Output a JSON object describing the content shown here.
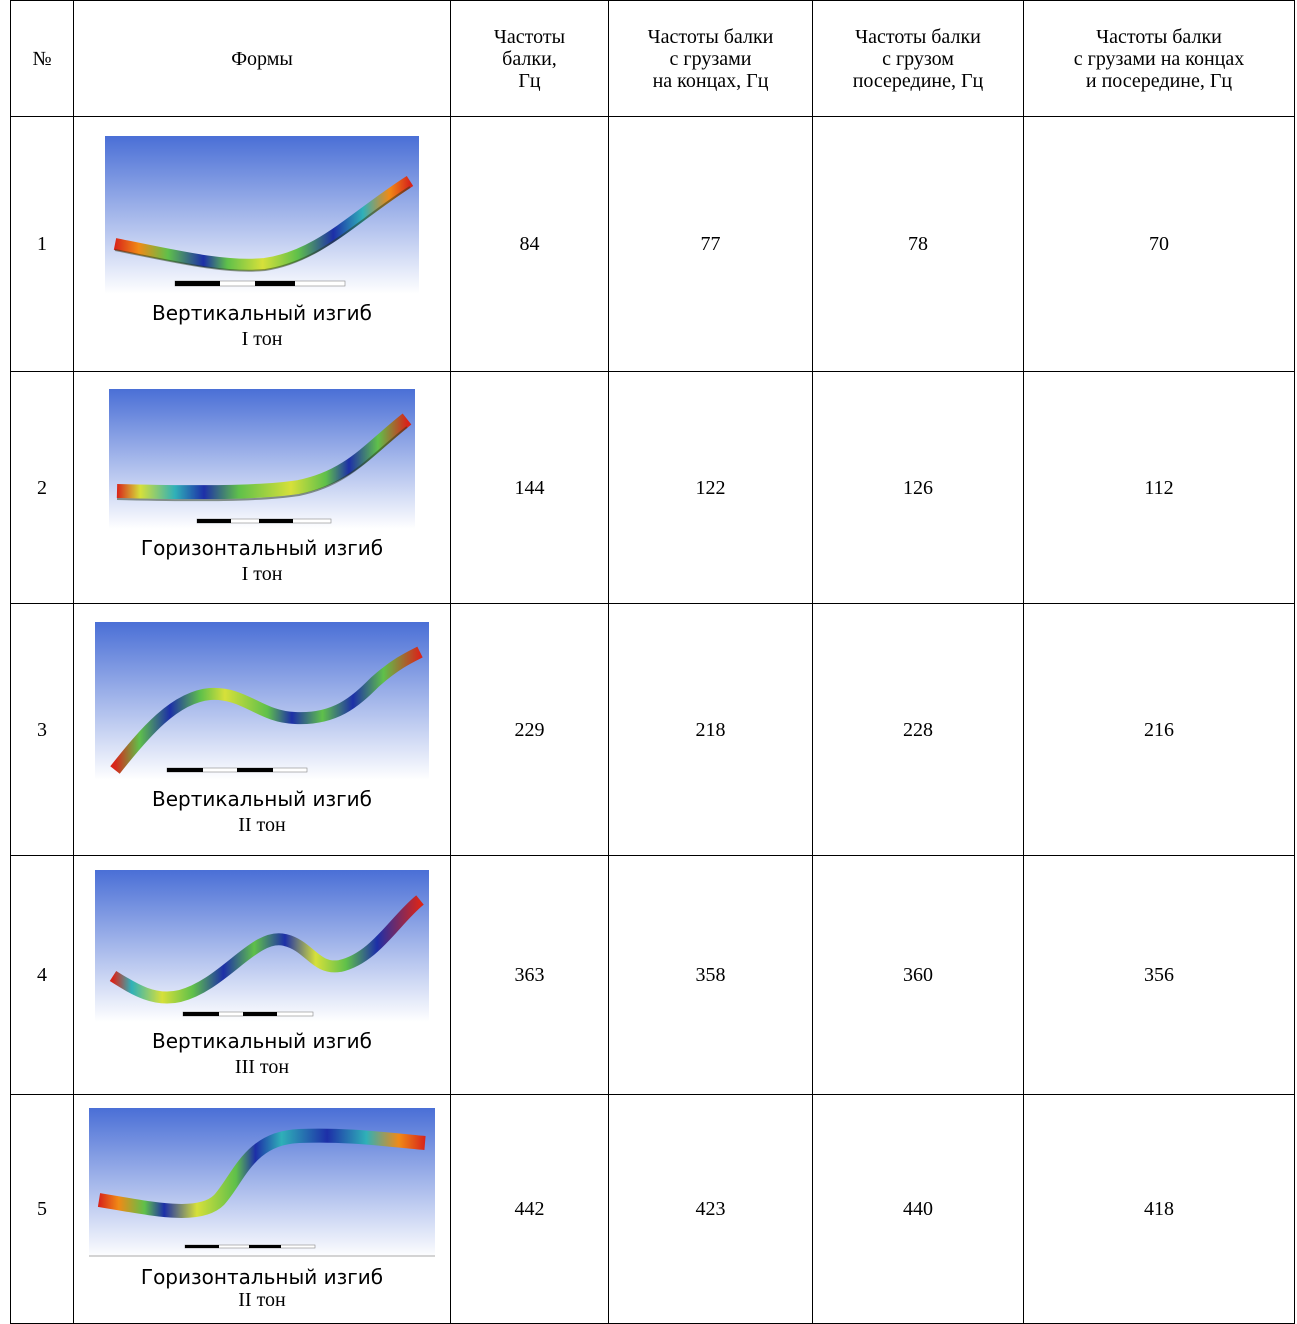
{
  "table": {
    "headers": [
      "№",
      "Формы",
      "Частоты\nбалки,\nГц",
      "Частоты балки\nс грузами\nна концах, Гц",
      "Частоты балки\nс грузом\nпосередине, Гц",
      "Частоты балки\nс грузами на концах\nи посередине, Гц"
    ],
    "rows": [
      {
        "num": "1",
        "shape_type": "Вертикальный изгиб",
        "tone": "I тон",
        "f_beam": "84",
        "f_end_loads": "77",
        "f_mid_load": "78",
        "f_end_mid_loads": "70"
      },
      {
        "num": "2",
        "shape_type": "Горизонтальный изгиб",
        "tone": "I тон",
        "f_beam": "144",
        "f_end_loads": "122",
        "f_mid_load": "126",
        "f_end_mid_loads": "112"
      },
      {
        "num": "3",
        "shape_type": "Вертикальный изгиб",
        "tone": "II тон",
        "f_beam": "229",
        "f_end_loads": "218",
        "f_mid_load": "228",
        "f_end_mid_loads": "216"
      },
      {
        "num": "4",
        "shape_type": "Вертикальный изгиб",
        "tone": "III тон",
        "f_beam": "363",
        "f_end_loads": "358",
        "f_mid_load": "360",
        "f_end_mid_loads": "356"
      },
      {
        "num": "5",
        "shape_type": "Горизонтальный изгиб",
        "tone": "II тон",
        "f_beam": "442",
        "f_end_loads": "423",
        "f_mid_load": "440",
        "f_end_mid_loads": "418"
      }
    ]
  },
  "colors": {
    "bg_top": "#4a6fd6",
    "bg_bottom": "#ffffff",
    "mode_red": "#d8251a",
    "mode_orange": "#f08a16",
    "mode_yellow": "#d6e03a",
    "mode_green": "#5fc04a",
    "mode_cyan": "#2fb0b8",
    "mode_blue": "#1d2fa8"
  }
}
